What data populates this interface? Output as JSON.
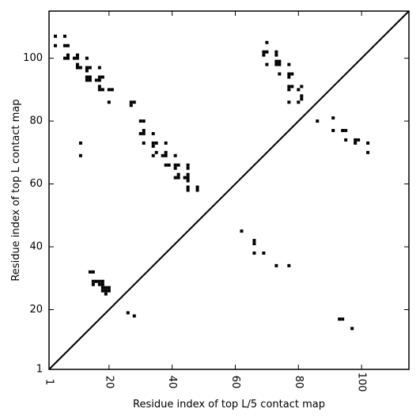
{
  "chart_data": {
    "type": "scatter",
    "title": "",
    "xlabel": "Residue index of top L/5 contact map",
    "ylabel": "Residue index of top L contact map",
    "xlim": [
      1,
      115
    ],
    "ylim": [
      1,
      115
    ],
    "x_ticks": [
      {
        "value": 1,
        "label": "1"
      },
      {
        "value": 20,
        "label": "20"
      },
      {
        "value": 40,
        "label": "40"
      },
      {
        "value": 60,
        "label": "60"
      },
      {
        "value": 80,
        "label": "80"
      },
      {
        "value": 100,
        "label": "100"
      }
    ],
    "y_ticks": [
      {
        "value": 1,
        "label": "1"
      },
      {
        "value": 20,
        "label": "20"
      },
      {
        "value": 40,
        "label": "40"
      },
      {
        "value": 60,
        "label": "60"
      },
      {
        "value": 80,
        "label": "80"
      },
      {
        "value": 100,
        "label": "100"
      }
    ],
    "diagonal": true,
    "grid": false,
    "marker_color": "#000000",
    "upper_triangle_points": [
      [
        3,
        107
      ],
      [
        6,
        107
      ],
      [
        3,
        104
      ],
      [
        6,
        104
      ],
      [
        7,
        104
      ],
      [
        6,
        100
      ],
      [
        7,
        100
      ],
      [
        7,
        101
      ],
      [
        9,
        100
      ],
      [
        10,
        100
      ],
      [
        10,
        101
      ],
      [
        10,
        98
      ],
      [
        10,
        97
      ],
      [
        11,
        97
      ],
      [
        13,
        100
      ],
      [
        13,
        97
      ],
      [
        13,
        96
      ],
      [
        14,
        97
      ],
      [
        13,
        94
      ],
      [
        13,
        93
      ],
      [
        14,
        94
      ],
      [
        14,
        93
      ],
      [
        16,
        93
      ],
      [
        17,
        94
      ],
      [
        17,
        93
      ],
      [
        18,
        94
      ],
      [
        17,
        97
      ],
      [
        17,
        91
      ],
      [
        17,
        90
      ],
      [
        18,
        90
      ],
      [
        20,
        90
      ],
      [
        21,
        90
      ],
      [
        20,
        86
      ],
      [
        27,
        86
      ],
      [
        27,
        85
      ],
      [
        28,
        86
      ],
      [
        30,
        80
      ],
      [
        31,
        80
      ],
      [
        30,
        76
      ],
      [
        31,
        76
      ],
      [
        31,
        77
      ],
      [
        31,
        73
      ],
      [
        34,
        76
      ],
      [
        34,
        73
      ],
      [
        34,
        72
      ],
      [
        35,
        73
      ],
      [
        34,
        69
      ],
      [
        35,
        70
      ],
      [
        37,
        69
      ],
      [
        38,
        70
      ],
      [
        38,
        69
      ],
      [
        38,
        73
      ],
      [
        38,
        66
      ],
      [
        39,
        66
      ],
      [
        41,
        69
      ],
      [
        41,
        66
      ],
      [
        41,
        65
      ],
      [
        42,
        66
      ],
      [
        41,
        62
      ],
      [
        42,
        62
      ],
      [
        42,
        63
      ],
      [
        44,
        62
      ],
      [
        45,
        62
      ],
      [
        45,
        63
      ],
      [
        45,
        61
      ],
      [
        45,
        65
      ],
      [
        45,
        66
      ],
      [
        45,
        59
      ],
      [
        45,
        58
      ],
      [
        48,
        59
      ],
      [
        48,
        58
      ],
      [
        11,
        73
      ],
      [
        11,
        69
      ],
      [
        69,
        101
      ],
      [
        69,
        102
      ],
      [
        70,
        102
      ],
      [
        70,
        105
      ],
      [
        70,
        98
      ],
      [
        73,
        101
      ],
      [
        73,
        102
      ],
      [
        73,
        98
      ],
      [
        73,
        99
      ],
      [
        74,
        98
      ],
      [
        74,
        99
      ],
      [
        74,
        95
      ],
      [
        77,
        98
      ],
      [
        77,
        95
      ],
      [
        78,
        95
      ],
      [
        77,
        94
      ],
      [
        77,
        91
      ],
      [
        77,
        90
      ],
      [
        78,
        91
      ],
      [
        77,
        86
      ],
      [
        80,
        90
      ],
      [
        80,
        86
      ],
      [
        81,
        91
      ],
      [
        81,
        88
      ],
      [
        81,
        87
      ],
      [
        86,
        80
      ],
      [
        91,
        81
      ],
      [
        91,
        77
      ],
      [
        94,
        77
      ],
      [
        95,
        77
      ],
      [
        95,
        74
      ],
      [
        98,
        74
      ],
      [
        98,
        73
      ],
      [
        99,
        74
      ],
      [
        102,
        73
      ],
      [
        102,
        70
      ]
    ],
    "lower_triangle_points": [
      [
        62,
        45
      ],
      [
        66,
        42
      ],
      [
        66,
        41
      ],
      [
        66,
        38
      ],
      [
        69,
        38
      ],
      [
        73,
        34
      ],
      [
        77,
        34
      ],
      [
        14,
        32
      ],
      [
        15,
        32
      ],
      [
        15,
        29
      ],
      [
        15,
        28
      ],
      [
        16,
        29
      ],
      [
        17,
        29
      ],
      [
        18,
        29
      ],
      [
        18,
        28
      ],
      [
        17,
        28
      ],
      [
        18,
        27
      ],
      [
        18,
        26
      ],
      [
        19,
        27
      ],
      [
        19,
        26
      ],
      [
        20,
        27
      ],
      [
        20,
        26
      ],
      [
        19,
        25
      ],
      [
        26,
        19
      ],
      [
        28,
        18
      ],
      [
        93,
        17
      ],
      [
        94,
        17
      ],
      [
        97,
        14
      ]
    ]
  }
}
